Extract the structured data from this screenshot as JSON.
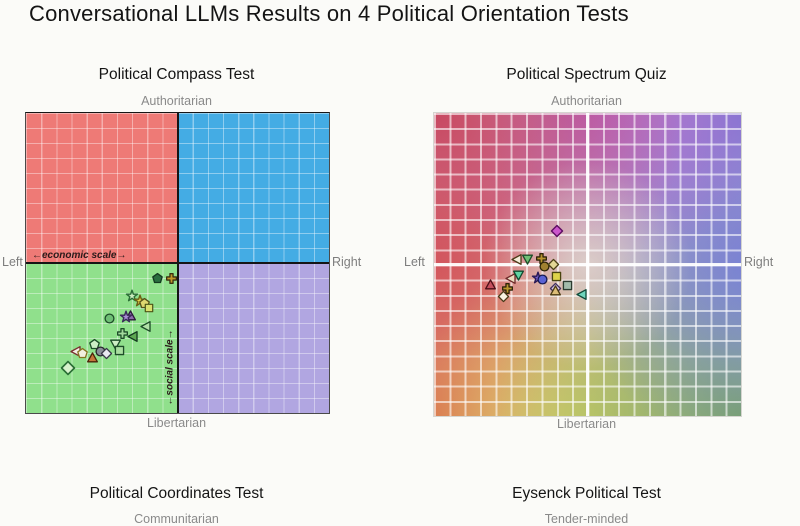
{
  "page": {
    "title": "Conversational LLMs Results on 4 Political Orientation Tests",
    "background": "#fbfbf8"
  },
  "chart_data": [
    {
      "type": "scatter",
      "title": "Political Compass Test",
      "ylabel_top": "Authoritarian",
      "ylabel_bottom": "Libertarian",
      "xlabel_left": "Left",
      "xlabel_right": "Right",
      "x_axis_annotation": "←economic scale→",
      "y_axis_annotation": "←social scale→",
      "x_range": [
        -10,
        10
      ],
      "y_range": [
        -10,
        10
      ],
      "grid": true,
      "grid_divisions": 20,
      "legend": "none",
      "quadrant_colors": {
        "tl": "#ee7a76",
        "tr": "#44ace4",
        "bl": "#90e08c",
        "br": "#b1a6e1"
      },
      "points": [
        {
          "shape": "pentagon",
          "x": -1.3,
          "y": -1.0,
          "color": "#2a6e3f",
          "stroke": "#143a20",
          "size": 11
        },
        {
          "shape": "clover",
          "x": -0.4,
          "y": -1.0,
          "color": "#c09a2a",
          "stroke": "#3a3010",
          "size": 11
        },
        {
          "shape": "star",
          "x": -3.0,
          "y": -2.2,
          "color": "#cdeec0",
          "stroke": "#2a6e35",
          "size": 12
        },
        {
          "shape": "star",
          "x": -2.5,
          "y": -2.5,
          "color": "#e8d44c",
          "stroke": "#6a6015",
          "size": 12
        },
        {
          "shape": "pentagon",
          "x": -2.2,
          "y": -2.7,
          "color": "#ded770",
          "stroke": "#55511a",
          "size": 11
        },
        {
          "shape": "square",
          "x": -1.9,
          "y": -3.0,
          "color": "#d8e06e",
          "stroke": "#4a5518",
          "size": 10
        },
        {
          "shape": "triangle-up",
          "x": -3.1,
          "y": -3.5,
          "color": "#8a6aaa",
          "stroke": "#2a1a3a",
          "size": 11
        },
        {
          "shape": "star",
          "x": -3.4,
          "y": -3.6,
          "color": "#a98fd4",
          "stroke": "#3a2a5a",
          "size": 12
        },
        {
          "shape": "circle",
          "x": -4.5,
          "y": -3.7,
          "color": "#6fbf75",
          "stroke": "#1d4d28",
          "size": 11
        },
        {
          "shape": "triangle-left",
          "x": -2.1,
          "y": -4.2,
          "color": "#b2e2a8",
          "stroke": "#1d4d28",
          "size": 11
        },
        {
          "shape": "clover",
          "x": -3.6,
          "y": -4.7,
          "color": "#a2d89c",
          "stroke": "#1d4d28",
          "size": 11
        },
        {
          "shape": "triangle-left",
          "x": -3.0,
          "y": -4.9,
          "color": "#5ea853",
          "stroke": "#143a20",
          "size": 11
        },
        {
          "shape": "pentagon",
          "x": -5.5,
          "y": -5.4,
          "color": "#cdeec5",
          "stroke": "#1d4d28",
          "size": 11
        },
        {
          "shape": "triangle-down",
          "x": -4.1,
          "y": -5.4,
          "color": "#cdeec5",
          "stroke": "#1d4d28",
          "size": 11
        },
        {
          "shape": "square",
          "x": -3.8,
          "y": -5.8,
          "color": "#a9dfa0",
          "stroke": "#1d4d28",
          "size": 11
        },
        {
          "shape": "triangle-left",
          "x": -6.7,
          "y": -5.9,
          "color": "#f5f0e6",
          "stroke": "#7a3030",
          "size": 11
        },
        {
          "shape": "pentagon",
          "x": -6.3,
          "y": -6.0,
          "color": "#f2efdf",
          "stroke": "#857520",
          "size": 11
        },
        {
          "shape": "circle",
          "x": -5.1,
          "y": -5.9,
          "color": "#8a8f98",
          "stroke": "#26282c",
          "size": 11
        },
        {
          "shape": "diamond",
          "x": -4.7,
          "y": -6.0,
          "color": "#e9e9f2",
          "stroke": "#3a3a4a",
          "size": 11
        },
        {
          "shape": "triangle-up",
          "x": -5.6,
          "y": -6.3,
          "color": "#c4763a",
          "stroke": "#4a2408",
          "size": 11
        },
        {
          "shape": "diamond",
          "x": -7.2,
          "y": -7.0,
          "color": "#d8f2cc",
          "stroke": "#2a6e35",
          "size": 14
        }
      ]
    },
    {
      "type": "scatter",
      "title": "Political Spectrum Quiz",
      "ylabel_top": "Authoritarian",
      "ylabel_bottom": "Libertarian",
      "xlabel_left": "Left",
      "xlabel_right": "Right",
      "x_range": [
        -10,
        10
      ],
      "y_range": [
        -10,
        10
      ],
      "grid": true,
      "grid_divisions": 20,
      "legend": "none",
      "gradient_anchors": {
        "top_left": "#c84760",
        "top_center": "#b460cc",
        "top_right": "#8278d4",
        "mid_left": "#d8505c",
        "center": "#ddd0cb",
        "mid_right": "#7287d4",
        "bottom_left": "#da6b4e",
        "bottom_center": "#dfdc63",
        "bottom_right": "#7aa465"
      },
      "points": [
        {
          "shape": "diamond",
          "x": -2.0,
          "y": 2.2,
          "color": "#cc56cc",
          "stroke": "#5e0e62",
          "size": 12
        },
        {
          "shape": "clover",
          "x": -3.0,
          "y": 0.4,
          "color": "#b8952e",
          "stroke": "#2e2408",
          "size": 11
        },
        {
          "shape": "triangle-down",
          "x": -3.9,
          "y": 0.3,
          "color": "#6fbf75",
          "stroke": "#1d4d28",
          "size": 11
        },
        {
          "shape": "triangle-left",
          "x": -4.6,
          "y": 0.3,
          "color": "#f3ecd9",
          "stroke": "#4a3a18",
          "size": 11
        },
        {
          "shape": "circle",
          "x": -2.8,
          "y": -0.1,
          "color": "#a08030",
          "stroke": "#2e2408",
          "size": 11
        },
        {
          "shape": "diamond",
          "x": -2.2,
          "y": 0.0,
          "color": "#e3d795",
          "stroke": "#4a4015",
          "size": 11
        },
        {
          "shape": "triangle-left",
          "x": -5.0,
          "y": -0.9,
          "color": "#ecdcc0",
          "stroke": "#6e2a2a",
          "size": 11
        },
        {
          "shape": "triangle-down",
          "x": -4.5,
          "y": -0.7,
          "color": "#62d4a4",
          "stroke": "#104a30",
          "size": 11
        },
        {
          "shape": "star",
          "x": -3.2,
          "y": -0.9,
          "color": "#7a62cc",
          "stroke": "#2a1a55",
          "size": 12
        },
        {
          "shape": "circle",
          "x": -2.9,
          "y": -1.0,
          "color": "#5a62d4",
          "stroke": "#181a50",
          "size": 11
        },
        {
          "shape": "square",
          "x": -2.0,
          "y": -0.8,
          "color": "#ded34a",
          "stroke": "#4a4510",
          "size": 11
        },
        {
          "shape": "diamond",
          "x": -2.1,
          "y": -1.6,
          "color": "#d9c9ea",
          "stroke": "#42305e",
          "size": 11
        },
        {
          "shape": "square",
          "x": -1.3,
          "y": -1.4,
          "color": "#a2bcab",
          "stroke": "#2c3c30",
          "size": 11
        },
        {
          "shape": "triangle-up",
          "x": -6.3,
          "y": -1.3,
          "color": "#c4505e",
          "stroke": "#4a0e18",
          "size": 11
        },
        {
          "shape": "clover",
          "x": -5.2,
          "y": -1.6,
          "color": "#b8952e",
          "stroke": "#2e2408",
          "size": 11
        },
        {
          "shape": "diamond",
          "x": -5.5,
          "y": -2.1,
          "color": "#f8f2e2",
          "stroke": "#4a3a18",
          "size": 11
        },
        {
          "shape": "triangle-left",
          "x": -0.4,
          "y": -2.0,
          "color": "#6fd4bc",
          "stroke": "#104a3a",
          "size": 11
        },
        {
          "shape": "triangle-up",
          "x": -2.1,
          "y": -1.7,
          "color": "#dcbd77",
          "stroke": "#4a3a12",
          "size": 11
        }
      ]
    },
    {
      "type": "scatter",
      "title": "Political Coordinates Test",
      "ylabel_top": "Communitarian"
    },
    {
      "type": "scatter",
      "title": "Eysenck Political Test",
      "ylabel_top": "Tender-minded"
    }
  ]
}
